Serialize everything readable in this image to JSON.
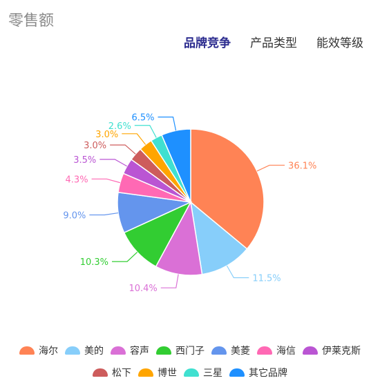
{
  "header": {
    "title": "零售额",
    "tabs": [
      {
        "label": "品牌竞争",
        "active": true
      },
      {
        "label": "产品类型",
        "active": false
      },
      {
        "label": "能效等级",
        "active": false
      }
    ]
  },
  "chart_data": {
    "type": "pie",
    "title": "",
    "slices": [
      {
        "name": "海尔",
        "value": 36.1,
        "label": "36.1%",
        "color": "#ff8355"
      },
      {
        "name": "美的",
        "value": 11.5,
        "label": "11.5%",
        "color": "#87cefa"
      },
      {
        "name": "容声",
        "value": 10.4,
        "label": "10.4%",
        "color": "#da70d6"
      },
      {
        "name": "西门子",
        "value": 10.3,
        "label": "10.3%",
        "color": "#32cd32"
      },
      {
        "name": "美菱",
        "value": 9.0,
        "label": "9.0%",
        "color": "#6495ed"
      },
      {
        "name": "海信",
        "value": 4.3,
        "label": "4.3%",
        "color": "#ff69b4"
      },
      {
        "name": "伊莱克斯",
        "value": 3.5,
        "label": "3.5%",
        "color": "#ba55d3"
      },
      {
        "name": "松下",
        "value": 3.0,
        "label": "3.0%",
        "color": "#cd5c5c"
      },
      {
        "name": "博世",
        "value": 3.0,
        "label": "3.0%",
        "color": "#ffa500"
      },
      {
        "name": "三星",
        "value": 2.6,
        "label": "2.6%",
        "color": "#40e0d0"
      },
      {
        "name": "其它品牌",
        "value": 6.5,
        "label": "6.5%",
        "color": "#1e90ff"
      }
    ],
    "legend_position": "bottom"
  }
}
